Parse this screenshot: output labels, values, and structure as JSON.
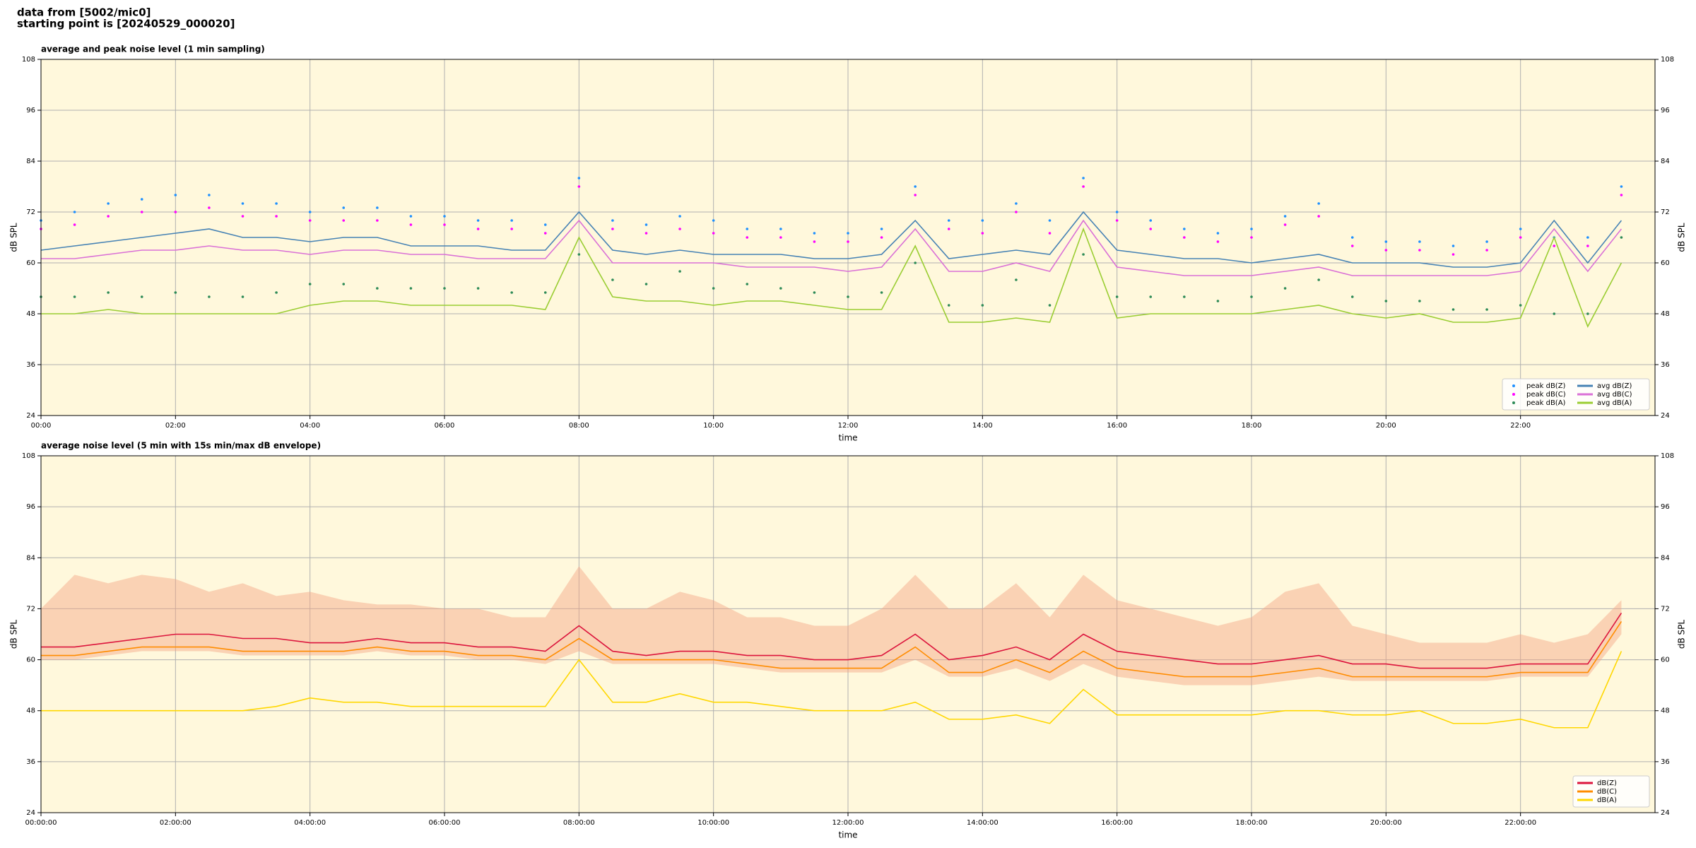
{
  "header": {
    "line1": "data from [5002/mic0]",
    "line2": "starting point is [20240529_000020]"
  },
  "chart_data": [
    {
      "type": "line",
      "title": "average and peak noise level (1 min sampling)",
      "xlabel": "time",
      "ylabel": "dB SPL",
      "y2label": "dB SPL",
      "x": [
        "00:00",
        "00:30",
        "01:00",
        "01:30",
        "02:00",
        "02:30",
        "03:00",
        "03:30",
        "04:00",
        "04:30",
        "05:00",
        "05:30",
        "06:00",
        "06:30",
        "07:00",
        "07:30",
        "08:00",
        "08:30",
        "09:00",
        "09:30",
        "10:00",
        "10:30",
        "11:00",
        "11:30",
        "12:00",
        "12:30",
        "13:00",
        "13:30",
        "14:00",
        "14:30",
        "15:00",
        "15:30",
        "16:00",
        "16:30",
        "17:00",
        "17:30",
        "18:00",
        "18:30",
        "19:00",
        "19:30",
        "20:00",
        "20:30",
        "21:00",
        "21:30",
        "22:00",
        "22:30",
        "23:00",
        "23:30"
      ],
      "xlim": [
        "00:00",
        "24:00"
      ],
      "xticks": [
        "00:00",
        "02:00",
        "04:00",
        "06:00",
        "08:00",
        "10:00",
        "12:00",
        "14:00",
        "16:00",
        "18:00",
        "20:00",
        "22:00"
      ],
      "ylim": [
        24,
        108
      ],
      "yticks": [
        24,
        36,
        48,
        60,
        72,
        84,
        96,
        108
      ],
      "grid": true,
      "background": "#fff8dc",
      "legend": "lower right",
      "series": [
        {
          "name": "peak dB(Z)",
          "type": "scatter",
          "color": "#1e90ff",
          "values": [
            70,
            72,
            74,
            75,
            76,
            76,
            74,
            74,
            72,
            73,
            73,
            71,
            71,
            70,
            70,
            69,
            80,
            70,
            69,
            71,
            70,
            68,
            68,
            67,
            67,
            68,
            78,
            70,
            70,
            74,
            70,
            80,
            72,
            70,
            68,
            67,
            68,
            71,
            74,
            66,
            65,
            65,
            64,
            65,
            68,
            66,
            66,
            78
          ]
        },
        {
          "name": "peak dB(C)",
          "type": "scatter",
          "color": "#ff00ff",
          "values": [
            68,
            69,
            71,
            72,
            72,
            73,
            71,
            71,
            70,
            70,
            70,
            69,
            69,
            68,
            68,
            67,
            78,
            68,
            67,
            68,
            67,
            66,
            66,
            65,
            65,
            66,
            76,
            68,
            67,
            72,
            67,
            78,
            70,
            68,
            66,
            65,
            66,
            69,
            71,
            64,
            63,
            63,
            62,
            63,
            66,
            64,
            64,
            76
          ]
        },
        {
          "name": "peak dB(A)",
          "type": "scatter",
          "color": "#2e8b57",
          "values": [
            52,
            52,
            53,
            52,
            53,
            52,
            52,
            53,
            55,
            55,
            54,
            54,
            54,
            54,
            53,
            53,
            62,
            56,
            55,
            58,
            54,
            55,
            54,
            53,
            52,
            53,
            60,
            50,
            50,
            56,
            50,
            62,
            52,
            52,
            52,
            51,
            52,
            54,
            56,
            52,
            51,
            51,
            49,
            49,
            50,
            48,
            48,
            66
          ]
        },
        {
          "name": "avg dB(Z)",
          "type": "line",
          "color": "#4682b4",
          "values": [
            63,
            64,
            65,
            66,
            67,
            68,
            66,
            66,
            65,
            66,
            66,
            64,
            64,
            64,
            63,
            63,
            72,
            63,
            62,
            63,
            62,
            62,
            62,
            61,
            61,
            62,
            70,
            61,
            62,
            63,
            62,
            72,
            63,
            62,
            61,
            61,
            60,
            61,
            62,
            60,
            60,
            60,
            59,
            59,
            60,
            70,
            60,
            70
          ]
        },
        {
          "name": "avg dB(C)",
          "type": "line",
          "color": "#da70d6",
          "values": [
            61,
            61,
            62,
            63,
            63,
            64,
            63,
            63,
            62,
            63,
            63,
            62,
            62,
            61,
            61,
            61,
            70,
            60,
            60,
            60,
            60,
            59,
            59,
            59,
            58,
            59,
            68,
            58,
            58,
            60,
            58,
            70,
            59,
            58,
            57,
            57,
            57,
            58,
            59,
            57,
            57,
            57,
            57,
            57,
            58,
            68,
            58,
            68
          ]
        },
        {
          "name": "avg dB(A)",
          "type": "line",
          "color": "#9acd32",
          "values": [
            48,
            48,
            49,
            48,
            48,
            48,
            48,
            48,
            50,
            51,
            51,
            50,
            50,
            50,
            50,
            49,
            66,
            52,
            51,
            51,
            50,
            51,
            51,
            50,
            49,
            49,
            64,
            46,
            46,
            47,
            46,
            68,
            47,
            48,
            48,
            48,
            48,
            49,
            50,
            48,
            47,
            48,
            46,
            46,
            47,
            66,
            45,
            60
          ]
        }
      ]
    },
    {
      "type": "line",
      "title": "average noise level (5 min with 15s min/max dB envelope)",
      "xlabel": "time",
      "ylabel": "dB SPL",
      "y2label": "dB SPL",
      "x": [
        "00:00:00",
        "00:30:00",
        "01:00:00",
        "01:30:00",
        "02:00:00",
        "02:30:00",
        "03:00:00",
        "03:30:00",
        "04:00:00",
        "04:30:00",
        "05:00:00",
        "05:30:00",
        "06:00:00",
        "06:30:00",
        "07:00:00",
        "07:30:00",
        "08:00:00",
        "08:30:00",
        "09:00:00",
        "09:30:00",
        "10:00:00",
        "10:30:00",
        "11:00:00",
        "11:30:00",
        "12:00:00",
        "12:30:00",
        "13:00:00",
        "13:30:00",
        "14:00:00",
        "14:30:00",
        "15:00:00",
        "15:30:00",
        "16:00:00",
        "16:30:00",
        "17:00:00",
        "17:30:00",
        "18:00:00",
        "18:30:00",
        "19:00:00",
        "19:30:00",
        "20:00:00",
        "20:30:00",
        "21:00:00",
        "21:30:00",
        "22:00:00",
        "22:30:00",
        "23:00:00",
        "23:30:00"
      ],
      "xlim": [
        "00:00:00",
        "24:00:00"
      ],
      "xticks": [
        "00:00:00",
        "02:00:00",
        "04:00:00",
        "06:00:00",
        "08:00:00",
        "10:00:00",
        "12:00:00",
        "14:00:00",
        "16:00:00",
        "18:00:00",
        "20:00:00",
        "22:00:00"
      ],
      "ylim": [
        24,
        108
      ],
      "yticks": [
        24,
        36,
        48,
        60,
        72,
        84,
        96,
        108
      ],
      "grid": true,
      "background": "#fff8dc",
      "legend": "lower right",
      "envelope": {
        "color": "#f4a582",
        "upper": [
          72,
          80,
          78,
          80,
          79,
          76,
          78,
          75,
          76,
          74,
          73,
          73,
          72,
          72,
          70,
          70,
          82,
          72,
          72,
          76,
          74,
          70,
          70,
          68,
          68,
          72,
          80,
          72,
          72,
          78,
          70,
          80,
          74,
          72,
          70,
          68,
          70,
          76,
          78,
          68,
          66,
          64,
          64,
          64,
          66,
          64,
          66,
          74
        ],
        "lower": [
          60,
          60,
          61,
          62,
          62,
          62,
          61,
          61,
          61,
          61,
          62,
          61,
          61,
          60,
          60,
          59,
          62,
          59,
          59,
          59,
          59,
          58,
          57,
          57,
          57,
          57,
          60,
          56,
          56,
          58,
          55,
          59,
          56,
          55,
          54,
          54,
          54,
          55,
          56,
          55,
          55,
          55,
          55,
          55,
          56,
          56,
          56,
          66
        ]
      },
      "series": [
        {
          "name": "dB(Z)",
          "type": "line",
          "color": "#dc143c",
          "values": [
            63,
            63,
            64,
            65,
            66,
            66,
            65,
            65,
            64,
            64,
            65,
            64,
            64,
            63,
            63,
            62,
            68,
            62,
            61,
            62,
            62,
            61,
            61,
            60,
            60,
            61,
            66,
            60,
            61,
            63,
            60,
            66,
            62,
            61,
            60,
            59,
            59,
            60,
            61,
            59,
            59,
            58,
            58,
            58,
            59,
            59,
            59,
            71
          ]
        },
        {
          "name": "dB(C)",
          "type": "line",
          "color": "#ff8c00",
          "values": [
            61,
            61,
            62,
            63,
            63,
            63,
            62,
            62,
            62,
            62,
            63,
            62,
            62,
            61,
            61,
            60,
            65,
            60,
            60,
            60,
            60,
            59,
            58,
            58,
            58,
            58,
            63,
            57,
            57,
            60,
            57,
            62,
            58,
            57,
            56,
            56,
            56,
            57,
            58,
            56,
            56,
            56,
            56,
            56,
            57,
            57,
            57,
            69
          ]
        },
        {
          "name": "dB(A)",
          "type": "line",
          "color": "#ffd700",
          "values": [
            48,
            48,
            48,
            48,
            48,
            48,
            48,
            49,
            51,
            50,
            50,
            49,
            49,
            49,
            49,
            49,
            60,
            50,
            50,
            52,
            50,
            50,
            49,
            48,
            48,
            48,
            50,
            46,
            46,
            47,
            45,
            53,
            47,
            47,
            47,
            47,
            47,
            48,
            48,
            47,
            47,
            48,
            45,
            45,
            46,
            44,
            44,
            62
          ]
        }
      ]
    }
  ]
}
